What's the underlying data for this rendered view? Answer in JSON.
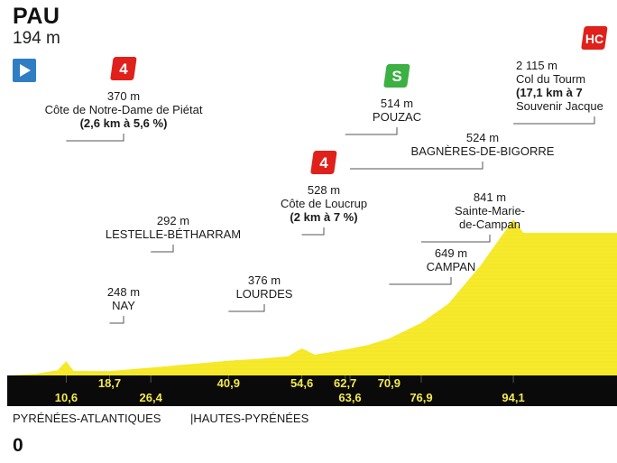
{
  "start": {
    "name": "PAU",
    "altitude": "194 m"
  },
  "departments": {
    "left": "PYRÉNÉES-ATLANTIQUES",
    "right": "|HAUTES-PYRÉNÉES"
  },
  "baseline": "0",
  "colors": {
    "profile": "#f7ea2b",
    "profile_dark": "#e2d41c",
    "band": "#0a0a0a",
    "km_text": "#f5e94a",
    "cat4": "#e0201b",
    "sprint": "#3cb043",
    "hc": "#e0201b",
    "start_flag": "#2f7ec3"
  },
  "chart_data": {
    "type": "area",
    "xunit": "km",
    "yunit": "m",
    "ylim": [
      0,
      2115
    ],
    "profile": [
      {
        "km": 0,
        "alt": 194
      },
      {
        "km": 5,
        "alt": 215
      },
      {
        "km": 9,
        "alt": 260
      },
      {
        "km": 10.6,
        "alt": 370
      },
      {
        "km": 12,
        "alt": 250
      },
      {
        "km": 18.7,
        "alt": 248
      },
      {
        "km": 26.4,
        "alt": 292
      },
      {
        "km": 33,
        "alt": 330
      },
      {
        "km": 40.9,
        "alt": 376
      },
      {
        "km": 47,
        "alt": 400
      },
      {
        "km": 52,
        "alt": 430
      },
      {
        "km": 54.6,
        "alt": 528
      },
      {
        "km": 57,
        "alt": 450
      },
      {
        "km": 62.7,
        "alt": 514
      },
      {
        "km": 63.6,
        "alt": 524
      },
      {
        "km": 67,
        "alt": 570
      },
      {
        "km": 70.9,
        "alt": 649
      },
      {
        "km": 76.9,
        "alt": 841
      },
      {
        "km": 82,
        "alt": 1080
      },
      {
        "km": 88,
        "alt": 1550
      },
      {
        "km": 94.1,
        "alt": 2115
      },
      {
        "km": 96,
        "alt": 1950
      }
    ],
    "points": [
      {
        "km": 10.6,
        "km_label": "10,6",
        "alt_label": "370 m",
        "name": "Côte de Notre-Dame de Piétat",
        "detail": "(2,6 km à 5,6 %)",
        "category": "4"
      },
      {
        "km": 18.7,
        "km_label": "18,7",
        "alt_label": "248 m",
        "name": "NAY",
        "detail": "",
        "category": ""
      },
      {
        "km": 26.4,
        "km_label": "26,4",
        "alt_label": "292 m",
        "name": "LESTELLE-BÉTHARRAM",
        "detail": "",
        "category": ""
      },
      {
        "km": 40.9,
        "km_label": "40,9",
        "alt_label": "376 m",
        "name": "LOURDES",
        "detail": "",
        "category": ""
      },
      {
        "km": 54.6,
        "km_label": "54,6",
        "alt_label": "528 m",
        "name": "Côte de Loucrup",
        "detail": "(2 km à 7 %)",
        "category": "4"
      },
      {
        "km": 62.7,
        "km_label": "62,7",
        "alt_label": "514 m",
        "name": "POUZAC",
        "detail": "",
        "category": "S"
      },
      {
        "km": 63.6,
        "km_label": "63,6",
        "alt_label": "524 m",
        "name": "BAGNÈRES-DE-BIGORRE",
        "detail": "",
        "category": ""
      },
      {
        "km": 70.9,
        "km_label": "70,9",
        "alt_label": "649 m",
        "name": "CAMPAN",
        "detail": "",
        "category": ""
      },
      {
        "km": 76.9,
        "km_label": "76,9",
        "alt_label": "841 m",
        "name": "Sainte-Marie-",
        "name2": "de-Campan",
        "detail": "",
        "category": ""
      },
      {
        "km": 94.1,
        "km_label": "94,1",
        "alt_label": "2 115 m",
        "name": "Col du Tourm",
        "detail": "(17,1 km à 7",
        "extra": "Souvenir Jacque",
        "category": "HC"
      }
    ]
  }
}
